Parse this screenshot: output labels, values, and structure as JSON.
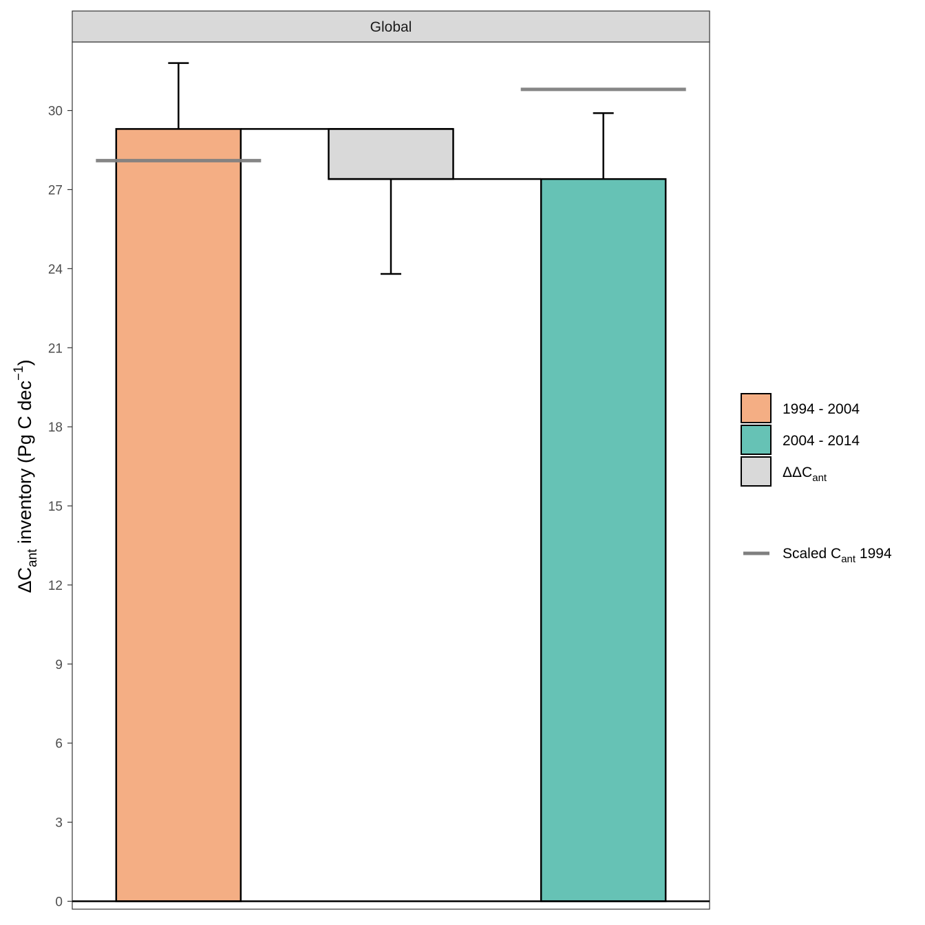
{
  "chart_data": {
    "type": "bar",
    "facet": "Global",
    "ylabel": {
      "prefix": "ΔC",
      "sub": "ant",
      "middle": " inventory ",
      "unit_open": "(Pg C dec",
      "unit_sup": "−1",
      "unit_close": ")"
    },
    "ylim": [
      -0.3,
      32.6
    ],
    "y_ticks": [
      0,
      3,
      6,
      9,
      12,
      15,
      18,
      21,
      24,
      27,
      30
    ],
    "grid": false,
    "legend_position": "right",
    "colors": {
      "period_1": "#F4AE84",
      "period_2": "#66C2B5",
      "difference": "#D9D9D9",
      "scaled_line": "#7F7F7F",
      "outline": "#000000"
    },
    "bars": [
      {
        "key": "period_1",
        "legend": "1994 - 2004",
        "value": 29.3,
        "error_dir": "up",
        "error_end": 31.8
      },
      {
        "key": "difference",
        "legend": "ΔΔC",
        "legend_sub": "ant",
        "from": 27.4,
        "to": 29.3,
        "error_dir": "down",
        "error_end": 23.8
      },
      {
        "key": "period_2",
        "legend": "2004 - 2014",
        "value": 27.4,
        "error_dir": "up",
        "error_end": 29.9
      }
    ],
    "scaled_cant_1994": {
      "legend_prefix": "Scaled C",
      "legend_sub": "ant",
      "legend_suffix": " 1994",
      "values": [
        28.1,
        null,
        30.8
      ]
    }
  }
}
